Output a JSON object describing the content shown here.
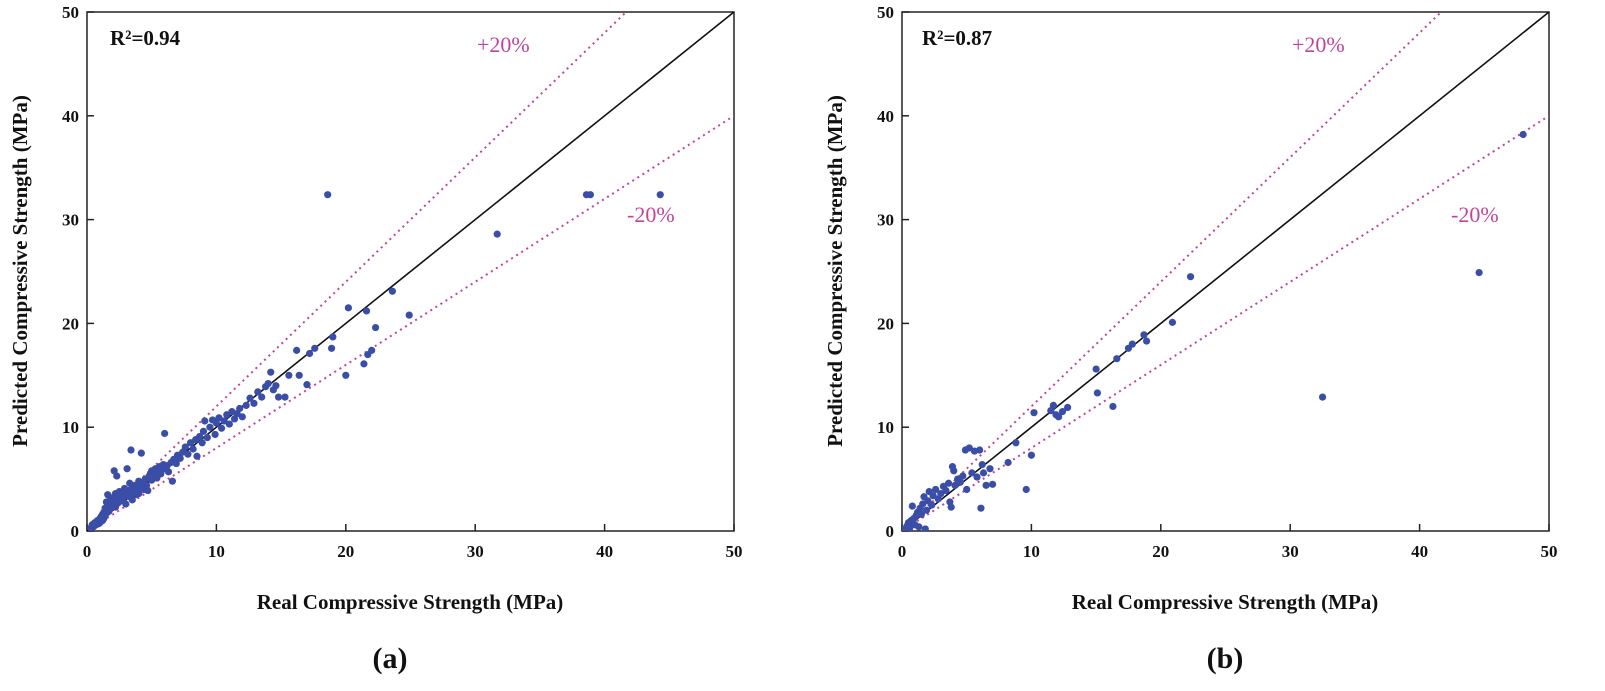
{
  "chart_data": [
    {
      "type": "scatter",
      "panel_label": "(a)",
      "r2_label": "R²=0.94",
      "xlabel": "Real Compressive Strength (MPa)",
      "ylabel": "Predicted Compressive Strength (MPa)",
      "xlim": [
        0,
        50
      ],
      "ylim": [
        0,
        50
      ],
      "ticks": [
        "0",
        "10",
        "20",
        "30",
        "40",
        "50"
      ],
      "band_upper_label": "+20%",
      "band_lower_label": "-20%",
      "colors": {
        "points": "#3a4ea8",
        "bands": "#c0449b",
        "identity": "#111111"
      },
      "points": [
        [
          0.3,
          0.3
        ],
        [
          0.4,
          0.6
        ],
        [
          0.5,
          0.4
        ],
        [
          0.6,
          0.8
        ],
        [
          0.7,
          0.6
        ],
        [
          0.8,
          1.0
        ],
        [
          0.9,
          0.7
        ],
        [
          1.0,
          1.2
        ],
        [
          1.0,
          0.8
        ],
        [
          1.1,
          1.4
        ],
        [
          1.2,
          1.0
        ],
        [
          1.2,
          1.6
        ],
        [
          1.3,
          1.8
        ],
        [
          1.3,
          1.2
        ],
        [
          1.4,
          2.2
        ],
        [
          1.4,
          1.5
        ],
        [
          1.5,
          2.8
        ],
        [
          1.5,
          1.7
        ],
        [
          1.6,
          2.0
        ],
        [
          1.6,
          3.5
        ],
        [
          1.7,
          2.5
        ],
        [
          1.7,
          1.9
        ],
        [
          1.8,
          3.0
        ],
        [
          1.8,
          2.2
        ],
        [
          1.9,
          2.6
        ],
        [
          2.0,
          3.2
        ],
        [
          2.0,
          2.4
        ],
        [
          2.1,
          5.8
        ],
        [
          2.1,
          2.8
        ],
        [
          2.2,
          3.6
        ],
        [
          2.2,
          2.3
        ],
        [
          2.3,
          5.3
        ],
        [
          2.3,
          3.0
        ],
        [
          2.4,
          2.7
        ],
        [
          2.5,
          3.8
        ],
        [
          2.5,
          3.1
        ],
        [
          2.6,
          2.9
        ],
        [
          2.7,
          3.4
        ],
        [
          2.8,
          3.2
        ],
        [
          2.9,
          4.1
        ],
        [
          3.0,
          3.6
        ],
        [
          3.0,
          2.6
        ],
        [
          3.1,
          6.0
        ],
        [
          3.2,
          3.9
        ],
        [
          3.3,
          3.3
        ],
        [
          3.3,
          4.6
        ],
        [
          3.4,
          7.8
        ],
        [
          3.5,
          4.2
        ],
        [
          3.5,
          3.0
        ],
        [
          3.6,
          3.7
        ],
        [
          3.7,
          4.4
        ],
        [
          3.8,
          3.5
        ],
        [
          3.9,
          4.1
        ],
        [
          4.0,
          4.8
        ],
        [
          4.0,
          3.6
        ],
        [
          4.1,
          4.3
        ],
        [
          4.2,
          7.5
        ],
        [
          4.3,
          4.6
        ],
        [
          4.4,
          4.0
        ],
        [
          4.5,
          5.0
        ],
        [
          4.6,
          4.4
        ],
        [
          4.7,
          3.9
        ],
        [
          4.8,
          5.3
        ],
        [
          4.9,
          5.5
        ],
        [
          5.0,
          4.9
        ],
        [
          5.0,
          5.8
        ],
        [
          5.2,
          5.4
        ],
        [
          5.3,
          6.0
        ],
        [
          5.4,
          5.1
        ],
        [
          5.5,
          5.7
        ],
        [
          5.6,
          6.2
        ],
        [
          5.7,
          5.5
        ],
        [
          5.8,
          5.9
        ],
        [
          5.9,
          6.4
        ],
        [
          6.0,
          9.4
        ],
        [
          6.0,
          6.0
        ],
        [
          6.2,
          6.3
        ],
        [
          6.3,
          5.7
        ],
        [
          6.5,
          6.6
        ],
        [
          6.6,
          4.8
        ],
        [
          6.7,
          6.9
        ],
        [
          6.9,
          6.5
        ],
        [
          7.0,
          7.3
        ],
        [
          7.2,
          7.0
        ],
        [
          7.4,
          7.6
        ],
        [
          7.6,
          8.1
        ],
        [
          7.8,
          7.4
        ],
        [
          8.0,
          8.5
        ],
        [
          8.2,
          7.9
        ],
        [
          8.4,
          8.8
        ],
        [
          8.5,
          7.2
        ],
        [
          8.7,
          9.1
        ],
        [
          8.9,
          8.5
        ],
        [
          9.0,
          9.6
        ],
        [
          9.1,
          10.6
        ],
        [
          9.3,
          9.0
        ],
        [
          9.5,
          10.0
        ],
        [
          9.7,
          10.7
        ],
        [
          9.9,
          9.3
        ],
        [
          10.0,
          10.4
        ],
        [
          10.2,
          10.9
        ],
        [
          10.4,
          9.9
        ],
        [
          10.6,
          10.6
        ],
        [
          10.8,
          11.2
        ],
        [
          11.0,
          10.3
        ],
        [
          11.2,
          11.5
        ],
        [
          11.4,
          10.8
        ],
        [
          11.6,
          11.3
        ],
        [
          11.8,
          11.8
        ],
        [
          12.0,
          11.0
        ],
        [
          12.3,
          12.1
        ],
        [
          12.6,
          12.8
        ],
        [
          12.9,
          12.3
        ],
        [
          13.2,
          13.4
        ],
        [
          13.5,
          12.9
        ],
        [
          13.8,
          13.9
        ],
        [
          14.0,
          14.2
        ],
        [
          14.2,
          15.3
        ],
        [
          14.4,
          13.6
        ],
        [
          14.6,
          14.0
        ],
        [
          14.8,
          12.9
        ],
        [
          15.3,
          12.9
        ],
        [
          15.6,
          15.0
        ],
        [
          16.2,
          17.4
        ],
        [
          16.4,
          15.0
        ],
        [
          17.0,
          14.1
        ],
        [
          17.2,
          17.1
        ],
        [
          17.6,
          17.6
        ],
        [
          18.6,
          32.4
        ],
        [
          18.9,
          17.6
        ],
        [
          19.0,
          18.7
        ],
        [
          20.0,
          15.0
        ],
        [
          20.2,
          21.5
        ],
        [
          21.4,
          16.1
        ],
        [
          21.6,
          21.2
        ],
        [
          21.7,
          17.0
        ],
        [
          22.0,
          17.4
        ],
        [
          22.3,
          19.6
        ],
        [
          23.6,
          23.1
        ],
        [
          24.9,
          20.8
        ],
        [
          31.7,
          28.6
        ],
        [
          38.6,
          32.4
        ],
        [
          38.9,
          32.4
        ],
        [
          44.3,
          32.4
        ]
      ]
    },
    {
      "type": "scatter",
      "panel_label": "(b)",
      "r2_label": "R²=0.87",
      "xlabel": "Real Compressive Strength (MPa)",
      "ylabel": "Predicted Compressive Strength (MPa)",
      "xlim": [
        0,
        50
      ],
      "ylim": [
        0,
        50
      ],
      "ticks": [
        "0",
        "10",
        "20",
        "30",
        "40",
        "50"
      ],
      "band_upper_label": "+20%",
      "band_lower_label": "-20%",
      "colors": {
        "points": "#3a4ea8",
        "bands": "#c0449b",
        "identity": "#111111"
      },
      "points": [
        [
          0.2,
          0.2
        ],
        [
          0.4,
          0.5
        ],
        [
          0.5,
          0.8
        ],
        [
          0.6,
          0.3
        ],
        [
          0.7,
          1.0
        ],
        [
          0.8,
          2.4
        ],
        [
          0.9,
          1.2
        ],
        [
          1.0,
          0.6
        ],
        [
          1.1,
          1.5
        ],
        [
          1.2,
          1.8
        ],
        [
          1.3,
          0.4
        ],
        [
          1.4,
          2.2
        ],
        [
          1.5,
          1.6
        ],
        [
          1.6,
          2.6
        ],
        [
          1.7,
          3.3
        ],
        [
          1.8,
          0.2
        ],
        [
          1.9,
          2.0
        ],
        [
          2.0,
          2.9
        ],
        [
          2.1,
          3.8
        ],
        [
          2.3,
          2.5
        ],
        [
          2.4,
          3.4
        ],
        [
          2.6,
          4.0
        ],
        [
          2.8,
          3.1
        ],
        [
          3.0,
          3.6
        ],
        [
          3.2,
          4.3
        ],
        [
          3.4,
          3.9
        ],
        [
          3.6,
          4.6
        ],
        [
          3.7,
          2.8
        ],
        [
          3.8,
          2.3
        ],
        [
          3.9,
          6.2
        ],
        [
          4.0,
          5.8
        ],
        [
          4.1,
          4.4
        ],
        [
          4.3,
          5.0
        ],
        [
          4.5,
          4.7
        ],
        [
          4.7,
          5.3
        ],
        [
          4.9,
          7.8
        ],
        [
          5.0,
          4.0
        ],
        [
          5.2,
          8.0
        ],
        [
          5.4,
          5.6
        ],
        [
          5.6,
          7.7
        ],
        [
          5.8,
          5.2
        ],
        [
          6.0,
          7.8
        ],
        [
          6.1,
          2.2
        ],
        [
          6.2,
          6.4
        ],
        [
          6.3,
          5.6
        ],
        [
          6.5,
          4.4
        ],
        [
          6.8,
          6.0
        ],
        [
          7.0,
          4.5
        ],
        [
          8.2,
          6.6
        ],
        [
          8.8,
          8.5
        ],
        [
          9.6,
          4.0
        ],
        [
          10.0,
          7.3
        ],
        [
          10.2,
          11.4
        ],
        [
          11.5,
          11.6
        ],
        [
          11.7,
          12.1
        ],
        [
          11.9,
          11.2
        ],
        [
          12.1,
          11.0
        ],
        [
          12.4,
          11.5
        ],
        [
          12.8,
          11.9
        ],
        [
          15.0,
          15.6
        ],
        [
          15.1,
          13.3
        ],
        [
          16.3,
          12.0
        ],
        [
          16.6,
          16.6
        ],
        [
          17.5,
          17.6
        ],
        [
          17.8,
          18.0
        ],
        [
          18.7,
          18.9
        ],
        [
          18.9,
          18.3
        ],
        [
          20.9,
          20.1
        ],
        [
          22.3,
          24.5
        ],
        [
          32.5,
          12.9
        ],
        [
          44.6,
          24.9
        ],
        [
          48.0,
          38.2
        ]
      ]
    }
  ]
}
